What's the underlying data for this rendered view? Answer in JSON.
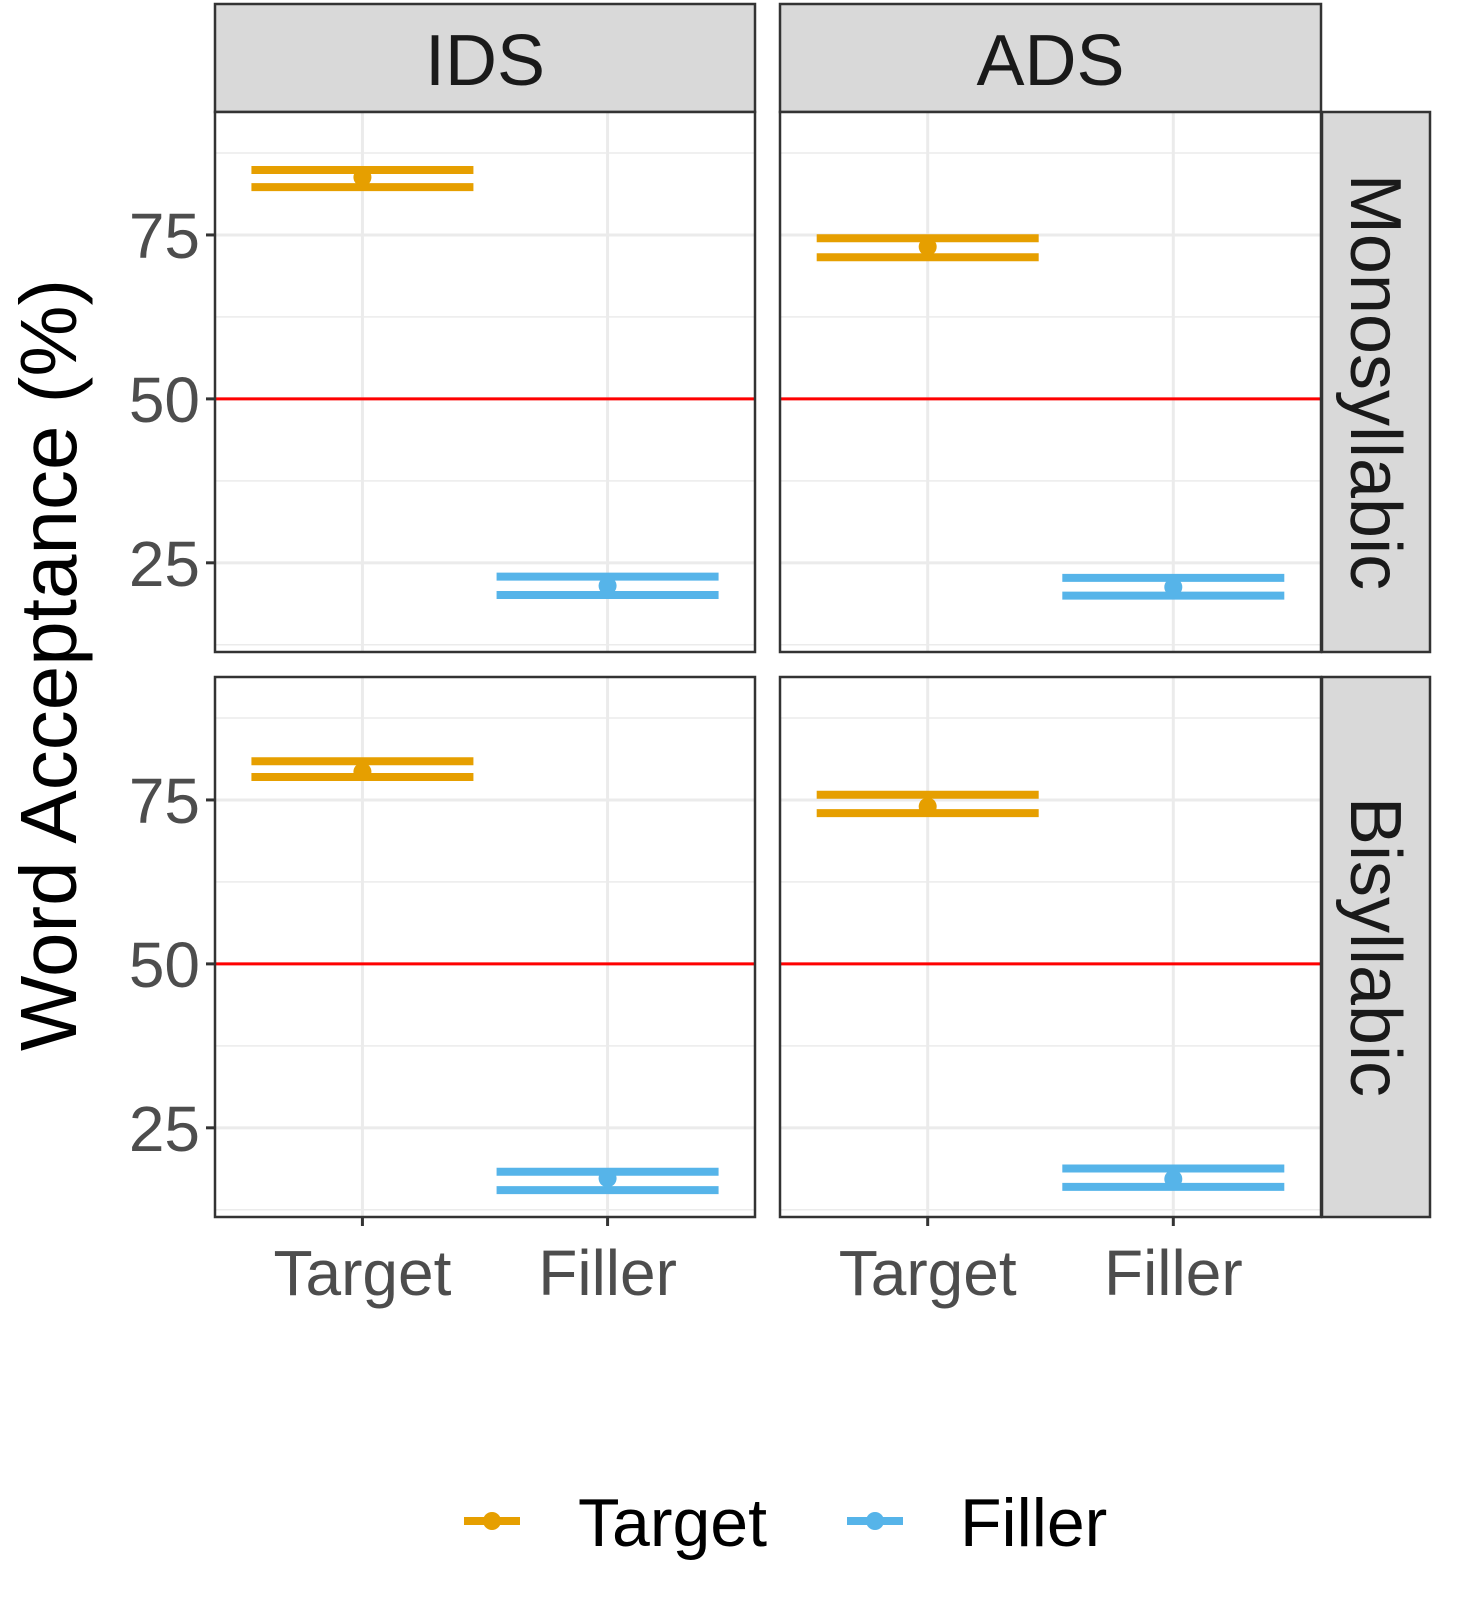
{
  "chart_data": {
    "type": "errorbar",
    "title": "",
    "xlabel": "",
    "ylabel": "Word Acceptance (%)",
    "ylim": [
      11.4,
      93.75
    ],
    "yticks": [
      25,
      50,
      75
    ],
    "grid": true,
    "reference_line": {
      "y": 50,
      "color": "#ff0000"
    },
    "facet_columns": [
      "IDS",
      "ADS"
    ],
    "facet_rows": [
      "Monosyllabic",
      "Bisyllabic"
    ],
    "categories": [
      "Target",
      "Filler"
    ],
    "legend": {
      "position": "bottom",
      "entries": [
        {
          "label": "Target",
          "color": "#E69F00"
        },
        {
          "label": "Filler",
          "color": "#56B4E9"
        }
      ]
    },
    "panels": [
      {
        "column": "IDS",
        "row": "Monosyllabic",
        "points": [
          {
            "category": "Target",
            "mean": 83.8,
            "lower": 82.3,
            "upper": 84.9
          },
          {
            "category": "Filler",
            "mean": 21.5,
            "lower": 20.1,
            "upper": 22.9
          }
        ]
      },
      {
        "column": "ADS",
        "row": "Monosyllabic",
        "points": [
          {
            "category": "Target",
            "mean": 73.2,
            "lower": 71.6,
            "upper": 74.5
          },
          {
            "category": "Filler",
            "mean": 21.3,
            "lower": 20.0,
            "upper": 22.7
          }
        ]
      },
      {
        "column": "IDS",
        "row": "Bisyllabic",
        "points": [
          {
            "category": "Target",
            "mean": 79.3,
            "lower": 78.5,
            "upper": 80.9
          },
          {
            "category": "Filler",
            "mean": 17.3,
            "lower": 15.5,
            "upper": 18.3
          }
        ]
      },
      {
        "column": "ADS",
        "row": "Bisyllabic",
        "points": [
          {
            "category": "Target",
            "mean": 74.0,
            "lower": 73.0,
            "upper": 75.8
          },
          {
            "category": "Filler",
            "mean": 17.2,
            "lower": 16.0,
            "upper": 18.8
          }
        ]
      }
    ]
  },
  "labels": {
    "ylabel": "Word Acceptance (%)",
    "col_strips": [
      "IDS",
      "ADS"
    ],
    "row_strips": [
      "Monosyllabic",
      "Bisyllabic"
    ],
    "x_ticks": [
      "Target",
      "Filler"
    ],
    "y_ticks": [
      "25",
      "50",
      "75"
    ],
    "legend": [
      "Target",
      "Filler"
    ]
  },
  "colors": {
    "target": "#E69F00",
    "filler": "#56B4E9",
    "reference": "#ff0000",
    "strip_bg": "#d9d9d9",
    "grid": "#ebebeb",
    "border": "#333333"
  }
}
